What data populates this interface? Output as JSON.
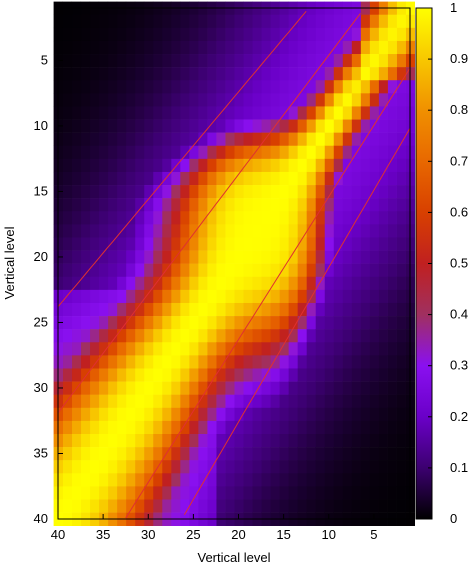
{
  "chart_data": {
    "type": "heatmap",
    "title": "",
    "xlabel": "Vertical level",
    "ylabel": "Vertical level",
    "x_ticks": [
      "40",
      "35",
      "30",
      "25",
      "20",
      "15",
      "10",
      "5"
    ],
    "y_ticks": [
      "5",
      "10",
      "15",
      "20",
      "25",
      "30",
      "35",
      "40"
    ],
    "x_range": [
      40,
      1
    ],
    "y_range": [
      1,
      40
    ],
    "grid": false,
    "colorbar": {
      "min": 0,
      "max": 1,
      "ticks": [
        "0",
        "0.1",
        "0.2",
        "0.3",
        "0.4",
        "0.5",
        "0.6",
        "0.7",
        "0.8",
        "0.9",
        "1"
      ],
      "colors": [
        "#000000",
        "#3c0070",
        "#6a00c8",
        "#8a10f0",
        "#a03060",
        "#c02020",
        "#d84000",
        "#e86800",
        "#f09000",
        "#f8c800",
        "#ffff00"
      ]
    },
    "field_description": "correlation between vertical levels: value 1 on the diagonal, decreasing away from it; contour lines drawn in red",
    "contour_levels": [
      0.4,
      0.7
    ]
  }
}
